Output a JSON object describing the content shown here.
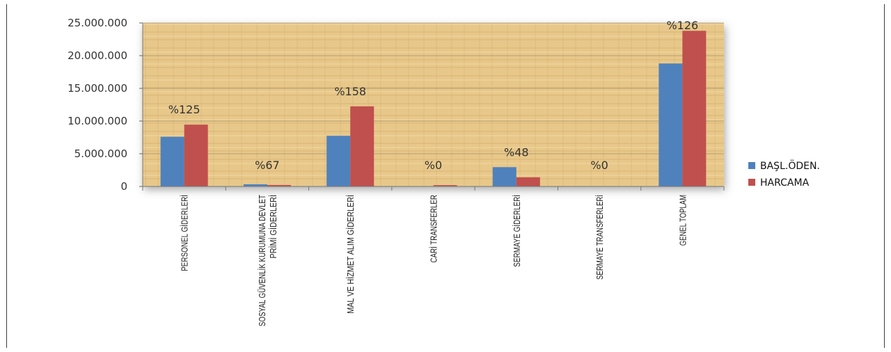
{
  "chart_data": {
    "type": "bar",
    "categories": [
      [
        "PERSONEL GİDERLERİ"
      ],
      [
        "SOSYAL GÜVENLİK KURUMUNA DEVLET",
        "PRİMİ GİDERLERİ"
      ],
      [
        "MAL VE HİZMET ALIM GİDERLERİ"
      ],
      [
        "CARİ TRANSFERLER"
      ],
      [
        "SERMAYE GİDERLERİ"
      ],
      [
        "SERMAYE TRANSFERLERİ"
      ],
      [
        "GENEL TOPLAM"
      ]
    ],
    "series": [
      {
        "name": "BAŞL.ÖDEN.",
        "color": "#4f81bd",
        "values": [
          7600000,
          330000,
          7750000,
          0,
          2950000,
          0,
          18800000
        ]
      },
      {
        "name": "HARCAMA",
        "color": "#c0504d",
        "values": [
          9450000,
          220000,
          12250000,
          200000,
          1400000,
          0,
          23800000
        ]
      }
    ],
    "data_labels": [
      "%125",
      "%67",
      "%158",
      "%0",
      "%48",
      "%0",
      "%126"
    ],
    "ylim": [
      0,
      25000000
    ],
    "yticks": [
      "0",
      "5.000.000",
      "10.000.000",
      "15.000.000",
      "20.000.000",
      "25.000.000"
    ],
    "legend_position": "right",
    "grid": true,
    "title": "",
    "xlabel": "",
    "ylabel": ""
  }
}
